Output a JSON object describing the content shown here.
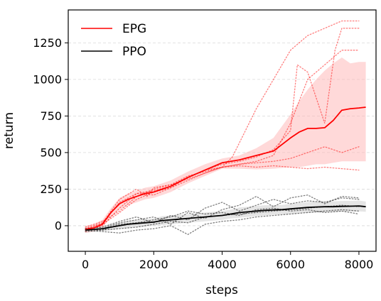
{
  "chart_data": {
    "type": "line",
    "xlabel": "steps",
    "ylabel": "return",
    "xlim": [
      -500,
      8500
    ],
    "ylim": [
      -175,
      1475
    ],
    "xticks": [
      0,
      2000,
      4000,
      6000,
      8000
    ],
    "xtick_labels": [
      "0",
      "2000",
      "4000",
      "6000",
      "8000"
    ],
    "yticks": [
      0,
      250,
      500,
      750,
      1000,
      1250
    ],
    "ytick_labels": [
      "0",
      "250",
      "500",
      "750",
      "1000",
      "1250"
    ],
    "grid": "horizontal dashed",
    "legend": {
      "position": "top-left",
      "entries": [
        "EPG",
        "PPO"
      ]
    },
    "series": [
      {
        "name": "EPG",
        "color": "#ff0000",
        "band_color": "#ffb3b3",
        "style": "solid",
        "x": [
          0,
          250,
          500,
          750,
          1000,
          1250,
          1500,
          1750,
          2000,
          2250,
          2500,
          2750,
          3000,
          3500,
          4000,
          4500,
          5000,
          5500,
          6000,
          6250,
          6500,
          6750,
          7000,
          7250,
          7500,
          7750,
          8000,
          8200
        ],
        "values": [
          -25,
          -15,
          10,
          90,
          150,
          180,
          200,
          220,
          230,
          250,
          270,
          300,
          330,
          380,
          430,
          450,
          480,
          510,
          600,
          640,
          665,
          665,
          670,
          720,
          790,
          800,
          805,
          810
        ],
        "band_lower": [
          -50,
          -40,
          -15,
          60,
          110,
          140,
          160,
          180,
          190,
          210,
          230,
          260,
          290,
          340,
          390,
          390,
          385,
          390,
          400,
          400,
          410,
          420,
          420,
          430,
          440,
          440,
          440,
          440
        ],
        "band_upper": [
          0,
          10,
          40,
          120,
          190,
          220,
          240,
          260,
          270,
          290,
          310,
          340,
          370,
          420,
          460,
          480,
          530,
          600,
          760,
          850,
          930,
          1000,
          1060,
          1110,
          1150,
          1110,
          1120,
          1120
        ],
        "runs": [
          {
            "x": [
              0,
              500,
              1000,
              1500,
              1800,
              2000,
              2500,
              3000,
              3500,
              4000,
              4300,
              5000,
              5500,
              6000,
              6500,
              7000,
              7500,
              8000
            ],
            "values": [
              -20,
              20,
              180,
              250,
              200,
              260,
              280,
              340,
              370,
              400,
              470,
              800,
              1000,
              1200,
              1300,
              1350,
              1400,
              1400
            ]
          },
          {
            "x": [
              0,
              500,
              1000,
              1500,
              2000,
              2500,
              3000,
              3500,
              4000,
              4500,
              5000,
              5500,
              6000,
              6200,
              6500,
              7000,
              7300,
              7500,
              8000
            ],
            "values": [
              -30,
              0,
              120,
              220,
              240,
              270,
              330,
              380,
              420,
              440,
              470,
              520,
              650,
              1100,
              1050,
              700,
              1200,
              1350,
              1350
            ]
          },
          {
            "x": [
              0,
              500,
              1000,
              1500,
              2000,
              2500,
              3000,
              3500,
              4000,
              4500,
              5000,
              5500,
              6000,
              6500,
              7000,
              7500,
              8000
            ],
            "values": [
              -10,
              30,
              100,
              200,
              250,
              280,
              320,
              360,
              400,
              420,
              440,
              480,
              700,
              1000,
              1100,
              1200,
              1200
            ]
          },
          {
            "x": [
              0,
              500,
              1000,
              1500,
              2000,
              2500,
              3000,
              3500,
              4000,
              4500,
              5000,
              5500,
              6000,
              6500,
              7000,
              7500,
              8000
            ],
            "values": [
              -40,
              10,
              90,
              180,
              230,
              260,
              310,
              360,
              400,
              420,
              430,
              440,
              460,
              500,
              540,
              500,
              540
            ]
          },
          {
            "x": [
              0,
              500,
              1000,
              1500,
              2000,
              2500,
              3000,
              3500,
              4000,
              4500,
              5000,
              5500,
              6000,
              6500,
              7000,
              7500,
              8000
            ],
            "values": [
              -25,
              15,
              160,
              220,
              210,
              260,
              330,
              380,
              400,
              410,
              400,
              410,
              400,
              390,
              400,
              390,
              380
            ]
          }
        ]
      },
      {
        "name": "PPO",
        "color": "#000000",
        "band_color": "#cccccc",
        "style": "solid",
        "x": [
          0,
          250,
          500,
          750,
          1000,
          1250,
          1500,
          1750,
          2000,
          2250,
          2500,
          2750,
          3000,
          3250,
          3500,
          3750,
          4000,
          4250,
          4500,
          4750,
          5000,
          5250,
          5500,
          5750,
          6000,
          6250,
          6500,
          6750,
          7000,
          7250,
          7500,
          7750,
          8000,
          8200
        ],
        "values": [
          -30,
          -25,
          -20,
          -10,
          0,
          10,
          15,
          20,
          25,
          35,
          40,
          45,
          50,
          55,
          60,
          65,
          70,
          80,
          90,
          95,
          100,
          105,
          108,
          110,
          115,
          120,
          125,
          128,
          130,
          130,
          132,
          133,
          135,
          130
        ],
        "band_lower": [
          -45,
          -40,
          -35,
          -30,
          -20,
          -15,
          -10,
          -5,
          0,
          5,
          10,
          15,
          20,
          25,
          30,
          35,
          40,
          50,
          55,
          60,
          65,
          70,
          75,
          78,
          80,
          85,
          88,
          90,
          92,
          93,
          95,
          96,
          98,
          95
        ],
        "band_upper": [
          -15,
          -10,
          -5,
          10,
          20,
          35,
          40,
          45,
          50,
          65,
          70,
          75,
          80,
          85,
          90,
          95,
          100,
          110,
          125,
          130,
          135,
          140,
          141,
          142,
          150,
          155,
          162,
          166,
          168,
          167,
          169,
          170,
          172,
          165
        ],
        "runs": [
          {
            "x": [
              0,
              500,
              1000,
              1500,
              2000,
              2500,
              3000,
              3500,
              4000,
              4500,
              5000,
              5500,
              6000,
              6500,
              7000,
              7500,
              8000
            ],
            "values": [
              -20,
              -10,
              30,
              60,
              20,
              70,
              40,
              120,
              160,
              100,
              140,
              180,
              150,
              170,
              160,
              190,
              180
            ]
          },
          {
            "x": [
              0,
              500,
              1000,
              1500,
              2000,
              2500,
              3000,
              3500,
              4000,
              4500,
              5000,
              5500,
              6000,
              6500,
              7000,
              7500,
              8000
            ],
            "values": [
              -30,
              -20,
              20,
              40,
              60,
              10,
              90,
              50,
              110,
              140,
              200,
              130,
              190,
              210,
              150,
              200,
              190
            ]
          },
          {
            "x": [
              0,
              500,
              1000,
              1500,
              2000,
              2500,
              3000,
              3500,
              4000,
              4500,
              5000,
              5500,
              6000,
              6500,
              7000,
              7500,
              8000
            ],
            "values": [
              -40,
              -30,
              -20,
              -10,
              10,
              30,
              20,
              60,
              70,
              80,
              90,
              100,
              110,
              120,
              130,
              140,
              130
            ]
          },
          {
            "x": [
              0,
              500,
              1000,
              1500,
              2000,
              2500,
              3000,
              3500,
              4000,
              4500,
              5000,
              5500,
              6000,
              6500,
              7000,
              7500,
              8000
            ],
            "values": [
              -30,
              -40,
              -50,
              -30,
              -20,
              0,
              -60,
              10,
              30,
              40,
              60,
              70,
              80,
              90,
              100,
              110,
              100
            ]
          },
          {
            "x": [
              0,
              500,
              1000,
              1500,
              2000,
              2500,
              3000,
              3500,
              4000,
              4500,
              5000,
              5500,
              6000,
              6500,
              7000,
              7500,
              8000
            ],
            "values": [
              -20,
              -30,
              10,
              20,
              40,
              60,
              100,
              80,
              90,
              70,
              110,
              120,
              100,
              110,
              90,
              100,
              80
            ]
          }
        ]
      }
    ]
  }
}
